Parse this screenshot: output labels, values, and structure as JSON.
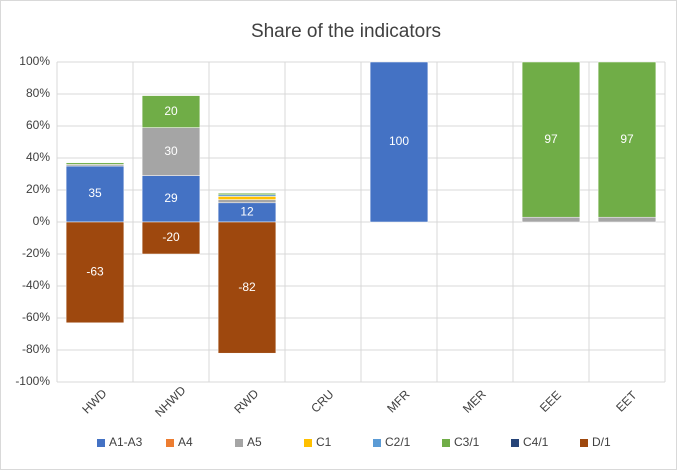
{
  "chart_data": {
    "type": "bar",
    "stacked": true,
    "title": "Share of the indicators",
    "categories": [
      "HWD",
      "NHWD",
      "RWD",
      "CRU",
      "MFR",
      "MER",
      "EEE",
      "EET"
    ],
    "series": [
      {
        "name": "A1-A3",
        "color": "#4472c4",
        "values": [
          35,
          29,
          12,
          0,
          100,
          0,
          0,
          0
        ]
      },
      {
        "name": "A4",
        "color": "#ed7d31",
        "values": [
          0,
          0,
          0,
          0,
          0,
          0,
          0,
          0
        ]
      },
      {
        "name": "A5",
        "color": "#a5a5a5",
        "values": [
          1,
          30,
          2,
          0,
          0,
          0,
          3,
          3
        ]
      },
      {
        "name": "C1",
        "color": "#ffc000",
        "values": [
          0,
          0,
          2,
          0,
          0,
          0,
          0,
          0
        ]
      },
      {
        "name": "C2/1",
        "color": "#5b9bd5",
        "values": [
          0,
          0,
          1,
          0,
          0,
          0,
          0,
          0
        ]
      },
      {
        "name": "C3/1",
        "color": "#70ad47",
        "values": [
          1,
          20,
          1,
          0,
          0,
          0,
          97,
          97
        ]
      },
      {
        "name": "C4/1",
        "color": "#264478",
        "values": [
          0,
          0,
          0,
          0,
          0,
          0,
          0,
          0
        ]
      },
      {
        "name": "D/1",
        "color": "#9e480e",
        "values": [
          -63,
          -20,
          -82,
          0,
          0,
          0,
          0,
          0
        ]
      }
    ],
    "ylim": [
      -100,
      100
    ],
    "yticks": [
      {
        "value": -100,
        "label": "-100%"
      },
      {
        "value": -80,
        "label": "-80%"
      },
      {
        "value": -60,
        "label": "-60%"
      },
      {
        "value": -40,
        "label": "-40%"
      },
      {
        "value": -20,
        "label": "-20%"
      },
      {
        "value": 0,
        "label": "0%"
      },
      {
        "value": 20,
        "label": "20%"
      },
      {
        "value": 40,
        "label": "40%"
      },
      {
        "value": 60,
        "label": "60%"
      },
      {
        "value": 80,
        "label": "80%"
      },
      {
        "value": 100,
        "label": "100%"
      }
    ],
    "grid": true,
    "legend": "bottom"
  }
}
